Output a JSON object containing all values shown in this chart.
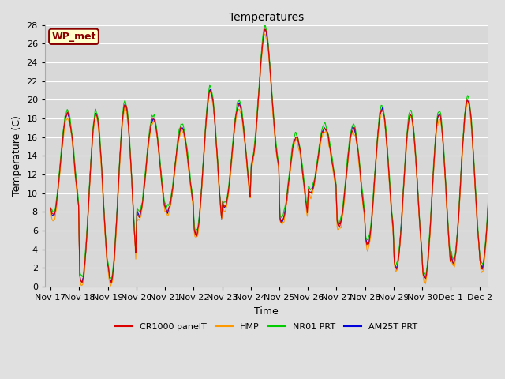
{
  "title": "Temperatures",
  "ylabel": "Temperature (C)",
  "xlabel": "Time",
  "ylim": [
    0,
    28
  ],
  "bg_color": "#e0e0e0",
  "plot_bg_color": "#d8d8d8",
  "grid_color": "#ffffff",
  "annotation_text": "WP_met",
  "annotation_bg": "#ffffcc",
  "annotation_border": "#8b0000",
  "annotation_text_color": "#8b0000",
  "lines": {
    "CR1000 panelT": {
      "color": "#dd0000",
      "lw": 0.8
    },
    "HMP": {
      "color": "#ff9900",
      "lw": 0.8
    },
    "NR01 PRT": {
      "color": "#00cc00",
      "lw": 0.8
    },
    "AM25T PRT": {
      "color": "#0000dd",
      "lw": 0.8
    }
  },
  "xtick_labels": [
    "Nov 17",
    "Nov 18",
    "Nov 19",
    "Nov 20",
    "Nov 21",
    "Nov 22",
    "Nov 23",
    "Nov 24",
    "Nov 25",
    "Nov 26",
    "Nov 27",
    "Nov 28",
    "Nov 29",
    "Nov 30",
    "Dec 1",
    "Dec 2"
  ],
  "ytick_labels": [
    "0",
    "2",
    "4",
    "6",
    "8",
    "10",
    "12",
    "14",
    "16",
    "18",
    "20",
    "22",
    "24",
    "26",
    "28"
  ],
  "figsize": [
    6.4,
    4.8
  ],
  "dpi": 100
}
